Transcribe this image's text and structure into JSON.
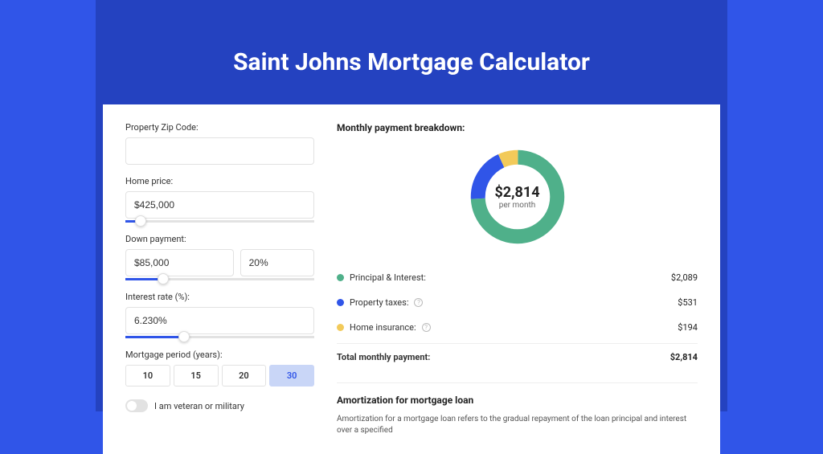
{
  "page": {
    "title": "Saint Johns Mortgage Calculator",
    "background_color": "#3055e8",
    "shadow_color": "#2442c0"
  },
  "form": {
    "zip": {
      "label": "Property Zip Code:",
      "value": ""
    },
    "home_price": {
      "label": "Home price:",
      "value": "$425,000",
      "slider_pct": 8
    },
    "down_payment": {
      "label": "Down payment:",
      "amount": "$85,000",
      "percent": "20%",
      "slider_pct": 20
    },
    "interest_rate": {
      "label": "Interest rate (%):",
      "value": "6.230%",
      "slider_pct": 31
    },
    "mortgage_period": {
      "label": "Mortgage period (years):",
      "options": [
        "10",
        "15",
        "20",
        "30"
      ],
      "selected": "30"
    },
    "veteran": {
      "label": "I am veteran or military",
      "checked": false
    }
  },
  "breakdown": {
    "title": "Monthly payment breakdown:",
    "donut": {
      "type": "donut",
      "center_amount": "$2,814",
      "center_sub": "per month",
      "size": 130,
      "thickness": 18,
      "background_color": "#ffffff",
      "segments": [
        {
          "label": "Principal & Interest:",
          "value": "$2,089",
          "pct": 74.2,
          "color": "#4fb08a"
        },
        {
          "label": "Property taxes:",
          "value": "$531",
          "pct": 18.9,
          "color": "#3055e8",
          "has_info": true
        },
        {
          "label": "Home insurance:",
          "value": "$194",
          "pct": 6.9,
          "color": "#f2ca5a",
          "has_info": true
        }
      ]
    },
    "total": {
      "label": "Total monthly payment:",
      "value": "$2,814"
    }
  },
  "amortization": {
    "title": "Amortization for mortgage loan",
    "text": "Amortization for a mortgage loan refers to the gradual repayment of the loan principal and interest over a specified"
  }
}
